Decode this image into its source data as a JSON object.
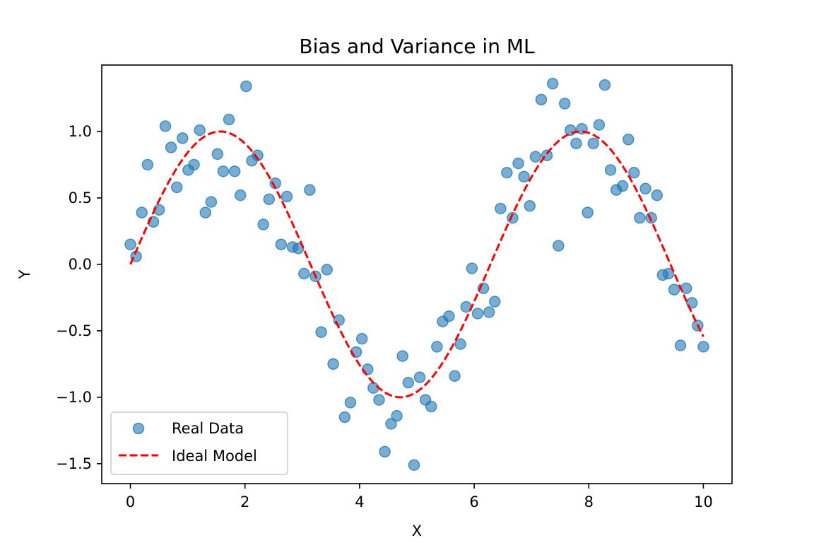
{
  "chart_data": {
    "type": "scatter",
    "title": "Bias and Variance in ML",
    "xlabel": "X",
    "ylabel": "Y",
    "xlim": [
      -0.5,
      10.5
    ],
    "ylim": [
      -1.65,
      1.5
    ],
    "xticks": [
      0,
      2,
      4,
      6,
      8,
      10
    ],
    "xtick_labels": [
      "0",
      "2",
      "4",
      "6",
      "8",
      "10"
    ],
    "yticks": [
      -1.5,
      -1.0,
      -0.5,
      0.0,
      0.5,
      1.0
    ],
    "ytick_labels": [
      "−1.5",
      "−1.0",
      "−0.5",
      "0.0",
      "0.5",
      "1.0"
    ],
    "grid": false,
    "legend_position": "lower-left",
    "series": [
      {
        "name": "Real Data",
        "kind": "scatter",
        "color": "#1f77b4",
        "alpha": 0.6,
        "x": [
          0.0,
          0.1,
          0.2,
          0.3,
          0.4,
          0.5,
          0.61,
          0.71,
          0.81,
          0.91,
          1.01,
          1.11,
          1.21,
          1.31,
          1.41,
          1.52,
          1.62,
          1.72,
          1.82,
          1.92,
          2.02,
          2.12,
          2.22,
          2.32,
          2.42,
          2.53,
          2.63,
          2.73,
          2.83,
          2.93,
          3.03,
          3.13,
          3.23,
          3.33,
          3.43,
          3.54,
          3.64,
          3.74,
          3.84,
          3.94,
          4.04,
          4.14,
          4.24,
          4.34,
          4.44,
          4.55,
          4.65,
          4.75,
          4.85,
          4.95,
          5.05,
          5.15,
          5.25,
          5.35,
          5.45,
          5.56,
          5.66,
          5.76,
          5.86,
          5.96,
          6.06,
          6.16,
          6.26,
          6.36,
          6.46,
          6.57,
          6.67,
          6.77,
          6.87,
          6.97,
          7.07,
          7.17,
          7.27,
          7.37,
          7.47,
          7.58,
          7.68,
          7.78,
          7.88,
          7.98,
          8.08,
          8.18,
          8.28,
          8.38,
          8.48,
          8.59,
          8.69,
          8.79,
          8.89,
          8.99,
          9.09,
          9.19,
          9.29,
          9.39,
          9.49,
          9.6,
          9.7,
          9.8,
          9.9,
          10.0
        ],
        "y": [
          0.15,
          0.06,
          0.39,
          0.75,
          0.32,
          0.41,
          1.04,
          0.88,
          0.58,
          0.95,
          0.71,
          0.75,
          1.01,
          0.39,
          0.47,
          0.83,
          0.7,
          1.09,
          0.7,
          0.52,
          1.34,
          0.78,
          0.82,
          0.3,
          0.49,
          0.61,
          0.15,
          0.51,
          0.13,
          0.12,
          -0.07,
          0.56,
          -0.09,
          -0.51,
          -0.04,
          -0.75,
          -0.42,
          -1.15,
          -1.04,
          -0.66,
          -0.56,
          -0.79,
          -0.93,
          -1.02,
          -1.41,
          -1.2,
          -1.14,
          -0.69,
          -0.89,
          -1.51,
          -0.85,
          -1.02,
          -1.07,
          -0.62,
          -0.43,
          -0.39,
          -0.84,
          -0.6,
          -0.32,
          -0.03,
          -0.37,
          -0.18,
          -0.36,
          -0.28,
          0.42,
          0.69,
          0.35,
          0.76,
          0.66,
          0.44,
          0.81,
          1.24,
          0.82,
          1.36,
          0.14,
          1.21,
          1.01,
          0.91,
          1.02,
          0.39,
          0.91,
          1.05,
          1.35,
          0.71,
          0.56,
          0.59,
          0.94,
          0.69,
          0.35,
          0.57,
          0.35,
          0.52,
          -0.08,
          -0.07,
          -0.19,
          -0.61,
          -0.18,
          -0.29,
          -0.46,
          -0.62
        ]
      },
      {
        "name": "Ideal Model",
        "kind": "line",
        "function": "sin(x)",
        "color": "#ff0000",
        "linestyle": "dashed",
        "x_range": [
          0,
          10
        ]
      }
    ]
  }
}
